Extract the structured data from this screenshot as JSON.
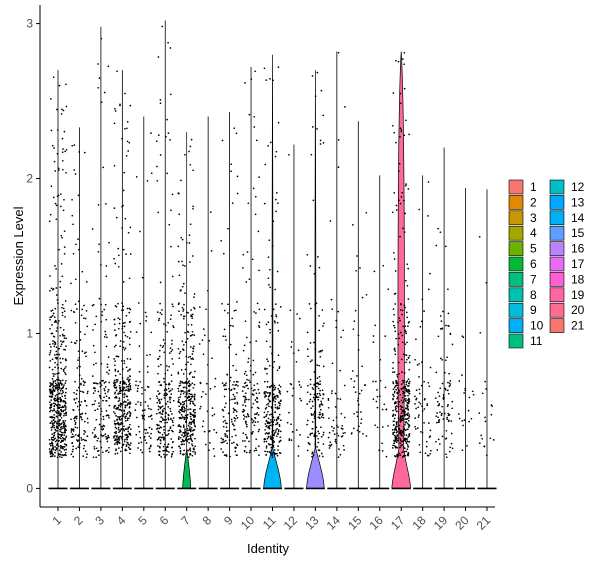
{
  "chart_data": {
    "type": "violin",
    "xlabel": "Identity",
    "ylabel": "Expression Level",
    "ylim": [
      -0.12,
      3.12
    ],
    "yticks": [
      0,
      1,
      2,
      3
    ],
    "jitter_points": true,
    "grid": false,
    "legend_position": "right",
    "categories": [
      "1",
      "2",
      "3",
      "4",
      "5",
      "6",
      "7",
      "8",
      "9",
      "10",
      "11",
      "12",
      "13",
      "14",
      "15",
      "16",
      "17",
      "18",
      "19",
      "20",
      "21"
    ],
    "series": [
      {
        "name": "1",
        "color": "#F8766D",
        "max": 2.7,
        "zero_bulb": 0.0,
        "body": 0.0,
        "dots": 520
      },
      {
        "name": "2",
        "color": "#E7851E",
        "max": 2.33,
        "zero_bulb": 0.0,
        "body": 0.0,
        "dots": 150
      },
      {
        "name": "3",
        "color": "#D09400",
        "max": 2.98,
        "zero_bulb": 0.0,
        "body": 0.0,
        "dots": 150
      },
      {
        "name": "4",
        "color": "#B2A100",
        "max": 2.7,
        "zero_bulb": 0.0,
        "body": 0.0,
        "dots": 360
      },
      {
        "name": "5",
        "color": "#89AC00",
        "max": 2.4,
        "zero_bulb": 0.0,
        "body": 0.0,
        "dots": 80
      },
      {
        "name": "6",
        "color": "#45B500",
        "max": 3.02,
        "zero_bulb": 0.0,
        "body": 0.0,
        "dots": 230
      },
      {
        "name": "7",
        "color": "#00BC51",
        "max": 2.3,
        "zero_bulb": 0.42,
        "body": 0.0,
        "dots": 360
      },
      {
        "name": "8",
        "color": "#00C087",
        "max": 2.4,
        "zero_bulb": 0.0,
        "body": 0.0,
        "dots": 40
      },
      {
        "name": "9",
        "color": "#00C0B2",
        "max": 2.43,
        "zero_bulb": 0.0,
        "body": 0.0,
        "dots": 130
      },
      {
        "name": "10",
        "color": "#00BCD6",
        "max": 2.72,
        "zero_bulb": 0.0,
        "body": 0.0,
        "dots": 140
      },
      {
        "name": "11",
        "color": "#00B3F2",
        "max": 2.8,
        "zero_bulb": 0.92,
        "body": 0.055,
        "dots": 260
      },
      {
        "name": "12",
        "color": "#29A3FF",
        "max": 2.22,
        "zero_bulb": 0.0,
        "body": 0.0,
        "dots": 30
      },
      {
        "name": "13",
        "color": "#9C8DFF",
        "max": 2.7,
        "zero_bulb": 0.92,
        "body": 0.055,
        "dots": 150
      },
      {
        "name": "14",
        "color": "#D277FF",
        "max": 2.82,
        "zero_bulb": 0.0,
        "body": 0.0,
        "dots": 60
      },
      {
        "name": "15",
        "color": "#F166E8",
        "max": 2.37,
        "zero_bulb": 0.0,
        "body": 0.0,
        "dots": 40
      },
      {
        "name": "16",
        "color": "#FF61C7",
        "max": 2.02,
        "zero_bulb": 0.0,
        "body": 0.0,
        "dots": 30
      },
      {
        "name": "17",
        "color": "#FF689E",
        "max": 2.82,
        "zero_bulb": 0.98,
        "body": 0.4,
        "dots": 420
      },
      {
        "name": "18",
        "color": "#00C1A3",
        "max": 2.02,
        "zero_bulb": 0.0,
        "body": 0.0,
        "dots": 60
      },
      {
        "name": "19",
        "color": "#00BAE0",
        "max": 2.2,
        "zero_bulb": 0.0,
        "body": 0.0,
        "dots": 90
      },
      {
        "name": "20",
        "color": "#00A9FF",
        "max": 1.94,
        "zero_bulb": 0.0,
        "body": 0.0,
        "dots": 20
      },
      {
        "name": "21",
        "color": "#FF65AC",
        "max": 1.93,
        "zero_bulb": 0.0,
        "body": 0.0,
        "dots": 20
      }
    ],
    "legend_colors": [
      "#F8766D",
      "#E58700",
      "#C99800",
      "#A3A500",
      "#6BB100",
      "#00BA38",
      "#00BF7D",
      "#00C0AF",
      "#00BCD8",
      "#00B0F6",
      "#00BF7D",
      "#00BFC4",
      "#00A9FF",
      "#00B0F6",
      "#619CFF",
      "#B983FF",
      "#E76BF3",
      "#FD61D1",
      "#FF67A4",
      "#FF6C91",
      "#F8766D"
    ]
  }
}
